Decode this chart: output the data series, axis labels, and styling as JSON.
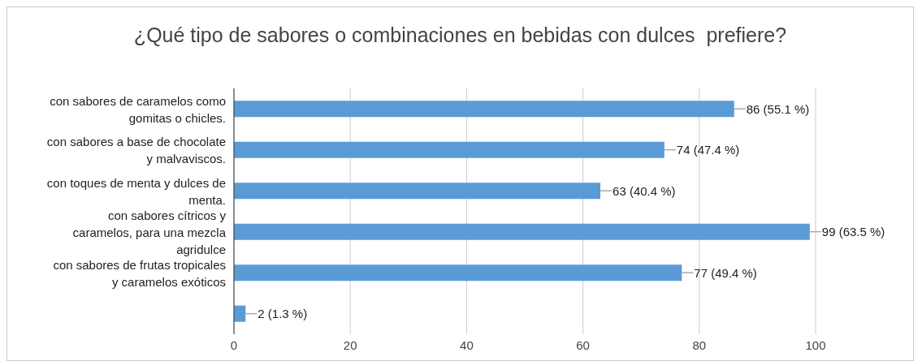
{
  "chart_data": {
    "type": "bar",
    "orientation": "horizontal",
    "title": "¿Qué tipo de sabores o combinaciones en bebidas con dulces  prefiere?",
    "categories": [
      "con sabores de caramelos como gomitas o chicles.",
      "con sabores a base de chocolate y malvaviscos.",
      "con toques de menta y dulces de menta.",
      "con sabores cítricos y caramelos, para una mezcla agridulce",
      "con sabores de frutas tropicales y caramelos exóticos",
      null
    ],
    "values": [
      86,
      74,
      63,
      99,
      77,
      2
    ],
    "value_labels": [
      "86 (55.1 %)",
      "74 (47.4 %)",
      "63 (40.4 %)",
      "99 (63.5 %)",
      "77 (49.4 %)",
      "2 (1.3 %)"
    ],
    "color": "#5b9bd5",
    "xlim": [
      0,
      100
    ],
    "xticks": [
      0,
      20,
      40,
      60,
      80,
      100
    ],
    "grid": "x",
    "legend": false
  }
}
